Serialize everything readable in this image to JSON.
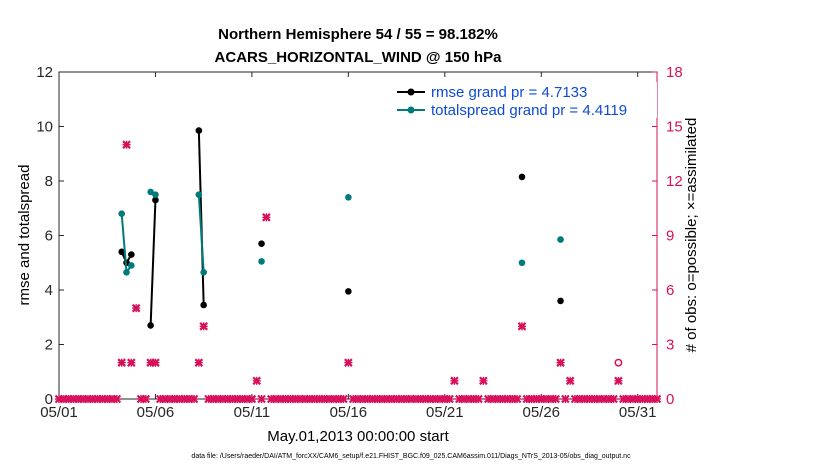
{
  "chart_data": {
    "type": "line",
    "title_line1": "Northern Hemisphere 54 / 55 = 98.182%",
    "title_line2": "ACARS_HORIZONTAL_WIND @ 150 hPa",
    "xlabel": "May.01,2013 00:00:00 start",
    "ylabel_left": "rmse and totalspread",
    "ylabel_right": "# of obs: o=possible; ×=assimilated",
    "xlim": [
      1,
      32
    ],
    "ylim_left": [
      0,
      12
    ],
    "ylim_right": [
      0,
      18
    ],
    "x_ticks": [
      1,
      6,
      11,
      16,
      21,
      26,
      31
    ],
    "x_tick_labels": [
      "05/01",
      "05/06",
      "05/11",
      "05/16",
      "05/21",
      "05/26",
      "05/31"
    ],
    "y_ticks_left": [
      0,
      2,
      4,
      6,
      8,
      10,
      12
    ],
    "y_tick_labels_left": [
      "0",
      "2",
      "4",
      "6",
      "8",
      "10",
      "12"
    ],
    "y_ticks_right": [
      0,
      3,
      6,
      9,
      12,
      15,
      18
    ],
    "y_tick_labels_right": [
      "0",
      "3",
      "6",
      "9",
      "12",
      "15",
      "18"
    ],
    "legend": [
      "rmse grand pr = 4.7133",
      "totalspread grand pr = 4.4119"
    ],
    "footer": "data file: /Users/raeder/DAI/ATM_forcXX/CAM6_setup/f.e21.FHIST_BGC.f09_025.CAM6assim.011/Diags_NTrS_2013-05/obs_diag_output.nc",
    "colors": {
      "rmse": "#000000",
      "totalspread": "#007a7a",
      "obs": "#d6105a",
      "legend_text": "#0f4ad6"
    },
    "series": [
      {
        "name": "rmse",
        "axis": "left",
        "segments": [
          [
            [
              4.25,
              5.4
            ],
            [
              4.5,
              5.0
            ],
            [
              4.75,
              5.3
            ]
          ],
          [
            [
              5.75,
              2.7
            ],
            [
              6.0,
              7.3
            ]
          ],
          [
            [
              8.25,
              9.85
            ],
            [
              8.5,
              3.45
            ]
          ],
          [
            [
              11.5,
              5.7
            ]
          ],
          [
            [
              16.0,
              3.95
            ]
          ],
          [
            [
              25.0,
              8.15
            ]
          ],
          [
            [
              27.0,
              3.6
            ]
          ]
        ]
      },
      {
        "name": "totalspread",
        "axis": "left",
        "segments": [
          [
            [
              4.25,
              6.8
            ],
            [
              4.5,
              4.65
            ],
            [
              4.75,
              4.9
            ]
          ],
          [
            [
              5.75,
              7.6
            ],
            [
              6.0,
              7.5
            ]
          ],
          [
            [
              8.25,
              7.5
            ],
            [
              8.5,
              4.65
            ]
          ],
          [
            [
              11.5,
              5.05
            ]
          ],
          [
            [
              16.0,
              7.4
            ]
          ],
          [
            [
              25.0,
              5.0
            ]
          ],
          [
            [
              27.0,
              5.85
            ]
          ]
        ]
      },
      {
        "name": "obs_assimilated",
        "axis": "right",
        "x": [
          1.0,
          1.25,
          1.5,
          1.75,
          2.0,
          2.25,
          2.5,
          2.75,
          3.0,
          3.25,
          3.5,
          3.75,
          4.0,
          4.25,
          4.5,
          4.75,
          5.0,
          5.25,
          5.5,
          5.75,
          6.0,
          6.25,
          6.5,
          6.75,
          7.0,
          7.25,
          7.5,
          7.75,
          8.0,
          8.25,
          8.5,
          8.75,
          9.0,
          9.25,
          9.5,
          9.75,
          10.0,
          10.25,
          10.5,
          10.75,
          11.0,
          11.25,
          11.5,
          11.75,
          12.0,
          12.25,
          12.5,
          12.75,
          13.0,
          13.25,
          13.5,
          13.75,
          14.0,
          14.25,
          14.5,
          14.75,
          15.0,
          15.25,
          15.5,
          15.75,
          16.0,
          16.25,
          16.5,
          16.75,
          17.0,
          17.25,
          17.5,
          17.75,
          18.0,
          18.25,
          18.5,
          18.75,
          19.0,
          19.25,
          19.5,
          19.75,
          20.0,
          20.25,
          20.5,
          20.75,
          21.0,
          21.25,
          21.5,
          21.75,
          22.0,
          22.25,
          22.5,
          22.75,
          23.0,
          23.25,
          23.5,
          23.75,
          24.0,
          24.25,
          24.5,
          24.75,
          25.0,
          25.25,
          25.5,
          25.75,
          26.0,
          26.25,
          26.5,
          26.75,
          27.0,
          27.25,
          27.5,
          27.75,
          28.0,
          28.25,
          28.5,
          28.75,
          29.0,
          29.25,
          29.5,
          29.75,
          30.0,
          30.25,
          30.5,
          30.75,
          31.0,
          31.25,
          31.5,
          31.75,
          32.0
        ],
        "values": [
          0,
          0,
          0,
          0,
          0,
          0,
          0,
          0,
          0,
          0,
          0,
          0,
          0,
          2,
          14,
          2,
          5,
          0,
          0,
          2,
          2,
          0,
          0,
          0,
          0,
          0,
          0,
          0,
          0,
          2,
          4,
          0,
          0,
          0,
          0,
          0,
          0,
          0,
          0,
          0,
          0,
          1,
          0,
          10,
          0,
          0,
          0,
          0,
          0,
          0,
          0,
          0,
          0,
          0,
          0,
          0,
          0,
          0,
          0,
          0,
          2,
          0,
          0,
          0,
          0,
          0,
          0,
          0,
          0,
          0,
          0,
          0,
          0,
          0,
          0,
          0,
          0,
          0,
          0,
          0,
          0,
          0,
          1,
          0,
          0,
          0,
          0,
          0,
          1,
          0,
          0,
          0,
          0,
          0,
          0,
          0,
          4,
          0,
          0,
          0,
          0,
          0,
          0,
          0,
          2,
          0,
          1,
          0,
          0,
          0,
          0,
          0,
          0,
          0,
          0,
          0,
          1,
          0,
          0,
          0,
          0,
          0,
          0,
          0,
          0
        ]
      },
      {
        "name": "obs_possible",
        "axis": "right",
        "x": [
          30.0
        ],
        "values": [
          2
        ]
      }
    ]
  }
}
